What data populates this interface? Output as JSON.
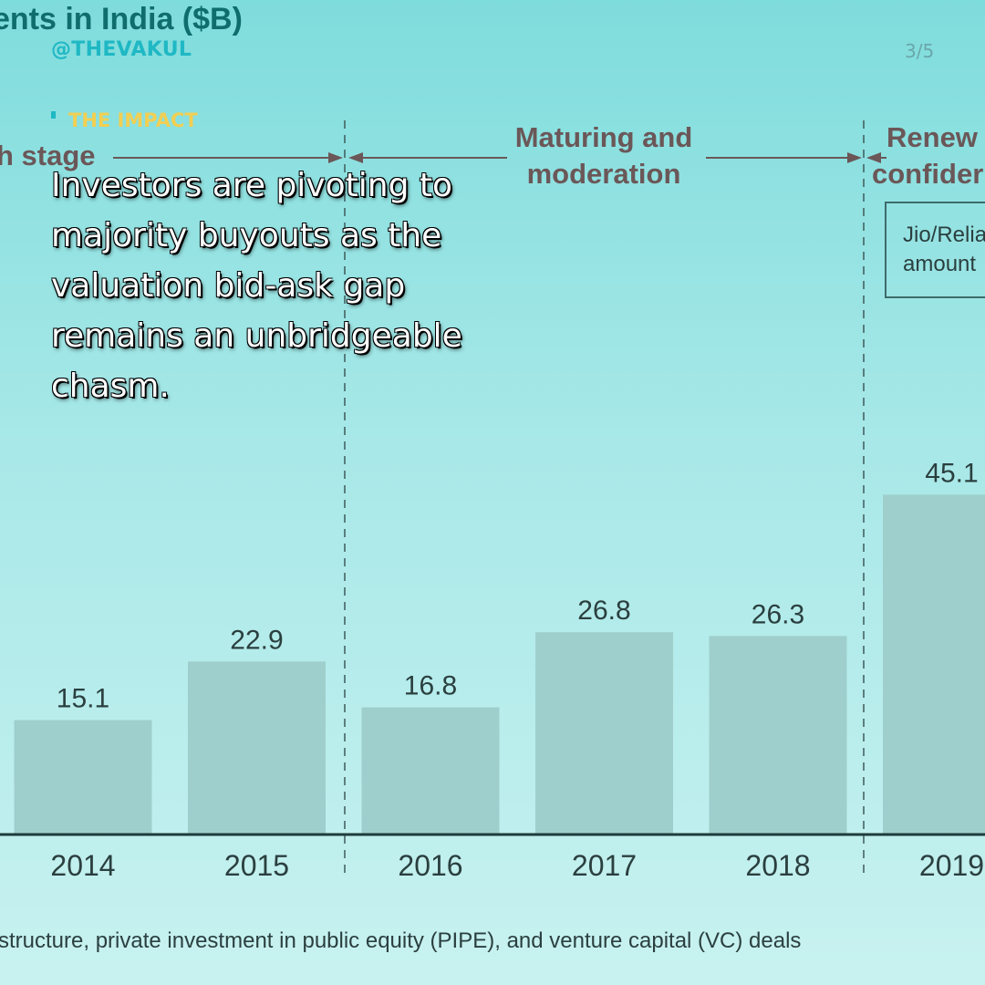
{
  "overlay": {
    "handle": "@THEVAKUL",
    "page_number": "3/5",
    "section_label": "THE IMPACT",
    "quote": "Investors are pivoting to majority buyouts as the valuation bid-ask gap remains an unbridgeable chasm."
  },
  "chart_data": {
    "type": "bar",
    "title": "ents in India ($B)",
    "categories": [
      "2014",
      "2015",
      "2016",
      "2017",
      "2018",
      "2019"
    ],
    "values": [
      15.1,
      22.9,
      16.8,
      26.8,
      26.3,
      45.1
    ],
    "ylim": [
      0,
      50
    ],
    "xlabel": "",
    "ylabel": "",
    "footnote": "structure, private investment in public equity (PIPE), and venture capital (VC) deals",
    "phases": [
      {
        "label_lines": [
          "h stage"
        ]
      },
      {
        "label_lines": [
          "Maturing and",
          "moderation"
        ]
      },
      {
        "label_lines": [
          "Renew",
          "confider"
        ]
      }
    ],
    "annotation_box": [
      "Jio/Relia",
      "amount"
    ],
    "colors": {
      "bar": "#9fcfcc",
      "axis": "#1f3b3b",
      "text": "#2b3f3f",
      "phase": "#6b5758",
      "title": "#0f6d6d"
    }
  }
}
